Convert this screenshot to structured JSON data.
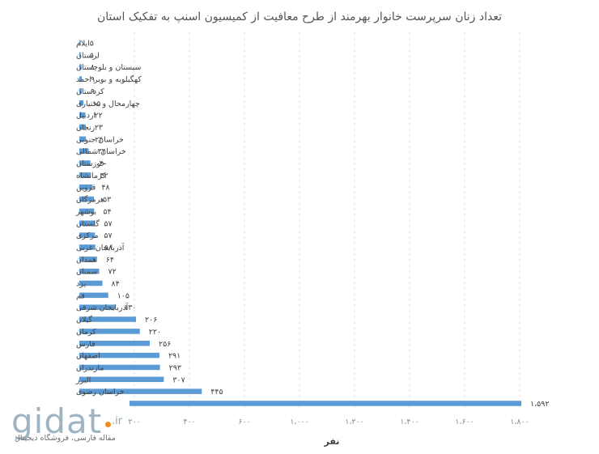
{
  "chart_data": {
    "type": "bar",
    "orientation": "horizontal",
    "title": "تعداد زنان سرپرست خانوار بهرمند از طرح معافیت از کمیسیون اسنپ به تفکیک استان",
    "xlabel": "نفر",
    "categories": [
      "ایلام",
      "لرستان",
      "سیستان و بلوچستان",
      "کهگیلویه و بویر احمد",
      "کردستان",
      "چهارمحال و بختیاری",
      "اردبیل",
      "زنجان",
      "خراسان جنوبی",
      "خراسان شمالی",
      "خوزستان",
      "کرمانشاه",
      "قزوین",
      "هرمزگان",
      "بوشهر",
      "گلستان",
      "مرکزی",
      "آذربایجان غربی",
      "همدان",
      "سمنان",
      "یزد",
      "قم",
      "آذربایجان شرقی",
      "گیلان",
      "کرمان",
      "فارس",
      "اصفهان",
      "مازندران",
      "البرز",
      "خراسان رضوی",
      ""
    ],
    "values": [
      5,
      5,
      8,
      9,
      9,
      15,
      22,
      23,
      24,
      34,
      40,
      42,
      48,
      53,
      54,
      57,
      57,
      58,
      64,
      72,
      84,
      105,
      130,
      206,
      220,
      256,
      291,
      293,
      307,
      445,
      1592
    ],
    "value_labels": [
      "۵",
      "۵",
      "۸",
      "۹",
      "۹",
      "۱۵",
      "۲۲",
      "۲۳",
      "۲۴",
      "۳۴",
      "۴۰",
      "۴۲",
      "۴۸",
      "۵۳",
      "۵۴",
      "۵۷",
      "۵۷",
      "۵۸",
      "۶۴",
      "۷۲",
      "۸۴",
      "۱۰۵",
      "۱۳۰",
      "۲۰۶",
      "۲۲۰",
      "۲۵۶",
      "۲۹۱",
      "۲۹۳",
      "۳۰۷",
      "۴۴۵",
      "۱،۵۹۲"
    ],
    "axis_note": "x axis is broken: linear 0–600 then jumps to 1,000–1,800",
    "tick_values": [
      200,
      400,
      600,
      1000,
      1200,
      1400,
      1600,
      1800
    ],
    "tick_labels": [
      "۲۰۰",
      "۴۰۰",
      "۶۰۰",
      "۱،۰۰۰",
      "۱،۲۰۰",
      "۱،۴۰۰",
      "۱،۶۰۰",
      "۱،۸۰۰"
    ],
    "grid": true,
    "legend": "none",
    "colors": {
      "bar": "#5b9bd5",
      "title": "#555555",
      "grid": "#e2e2e2"
    }
  },
  "watermark": {
    "brand": "gidat",
    "tld": ".ir",
    "tagline": "مقاله فارسی، فروشگاه دیجیتال"
  }
}
